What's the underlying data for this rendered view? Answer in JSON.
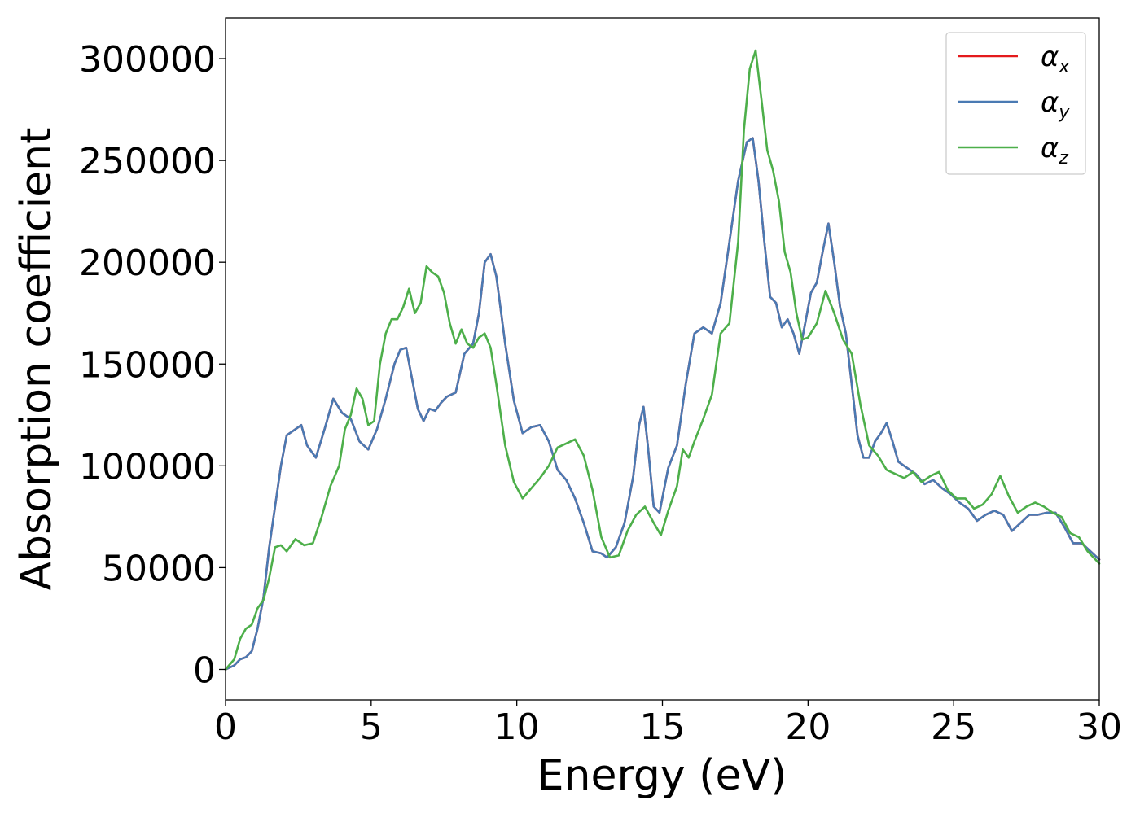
{
  "chart_data": {
    "type": "line",
    "xlabel": "Energy (eV)",
    "ylabel": "Absorption coefficient",
    "xlim": [
      0,
      30
    ],
    "ylim": [
      -15000,
      320000
    ],
    "xticks": [
      0,
      5,
      10,
      15,
      20,
      25,
      30
    ],
    "xtick_labels": [
      "0",
      "5",
      "10",
      "15",
      "20",
      "25",
      "30"
    ],
    "yticks": [
      0,
      50000,
      100000,
      150000,
      200000,
      250000,
      300000
    ],
    "ytick_labels": [
      "0",
      "50000",
      "100000",
      "150000",
      "200000",
      "250000",
      "300000"
    ],
    "grid": false,
    "legend_position": "top-right",
    "series": [
      {
        "name": "α_x",
        "label_main": "α",
        "label_sub": "x",
        "color": "#e41a1c",
        "x": [
          0,
          0.3,
          0.5,
          0.7,
          0.9,
          1.1,
          1.3,
          1.5,
          1.7,
          1.9,
          2.1,
          2.3,
          2.6,
          2.8,
          3.1,
          3.4,
          3.7,
          4.0,
          4.3,
          4.6,
          4.9,
          5.2,
          5.5,
          5.8,
          6.0,
          6.2,
          6.4,
          6.6,
          6.8,
          7.0,
          7.2,
          7.4,
          7.6,
          7.9,
          8.2,
          8.5,
          8.7,
          8.9,
          9.1,
          9.3,
          9.6,
          9.9,
          10.2,
          10.5,
          10.8,
          11.1,
          11.4,
          11.7,
          12.0,
          12.3,
          12.6,
          12.9,
          13.1,
          13.4,
          13.7,
          14.0,
          14.2,
          14.35,
          14.5,
          14.7,
          14.9,
          15.2,
          15.5,
          15.8,
          16.1,
          16.4,
          16.7,
          17.0,
          17.3,
          17.6,
          17.9,
          18.1,
          18.3,
          18.5,
          18.7,
          18.9,
          19.1,
          19.3,
          19.5,
          19.7,
          19.9,
          20.1,
          20.3,
          20.5,
          20.7,
          20.9,
          21.1,
          21.3,
          21.5,
          21.7,
          21.9,
          22.1,
          22.3,
          22.5,
          22.7,
          22.9,
          23.1,
          23.4,
          23.7,
          24.0,
          24.3,
          24.6,
          24.9,
          25.2,
          25.5,
          25.8,
          26.1,
          26.4,
          26.7,
          27.0,
          27.3,
          27.6,
          27.9,
          28.2,
          28.5,
          28.8,
          29.1,
          29.4,
          29.7,
          30.0
        ],
        "values": [
          0,
          2000,
          5000,
          6000,
          9000,
          20000,
          35000,
          60000,
          80000,
          100000,
          115000,
          117000,
          120000,
          110000,
          104000,
          118000,
          133000,
          126000,
          123000,
          112000,
          108000,
          118000,
          133000,
          150000,
          157000,
          158000,
          143000,
          128000,
          122000,
          128000,
          127000,
          131000,
          134000,
          136000,
          155000,
          160000,
          175000,
          200000,
          204000,
          193000,
          160000,
          132000,
          116000,
          119000,
          120000,
          112000,
          98000,
          93000,
          84000,
          72000,
          58000,
          57000,
          55000,
          60000,
          72000,
          95000,
          120000,
          129000,
          110000,
          80000,
          77000,
          99000,
          110000,
          140000,
          165000,
          168000,
          165000,
          180000,
          210000,
          240000,
          259000,
          261000,
          240000,
          210000,
          183000,
          180000,
          168000,
          172000,
          165000,
          155000,
          170000,
          185000,
          190000,
          205000,
          219000,
          200000,
          178000,
          165000,
          140000,
          115000,
          104000,
          104000,
          112000,
          116000,
          121000,
          112000,
          102000,
          99000,
          96000,
          91000,
          93000,
          89000,
          86000,
          82000,
          79000,
          73000,
          76000,
          78000,
          76000,
          68000,
          72000,
          76000,
          76000,
          77000,
          77000,
          70000,
          62000,
          62000,
          58000,
          54000
        ]
      },
      {
        "name": "α_y",
        "label_main": "α",
        "label_sub": "y",
        "color": "#4a7ab3",
        "x": [
          0,
          0.3,
          0.5,
          0.7,
          0.9,
          1.1,
          1.3,
          1.5,
          1.7,
          1.9,
          2.1,
          2.3,
          2.6,
          2.8,
          3.1,
          3.4,
          3.7,
          4.0,
          4.3,
          4.6,
          4.9,
          5.2,
          5.5,
          5.8,
          6.0,
          6.2,
          6.4,
          6.6,
          6.8,
          7.0,
          7.2,
          7.4,
          7.6,
          7.9,
          8.2,
          8.5,
          8.7,
          8.9,
          9.1,
          9.3,
          9.6,
          9.9,
          10.2,
          10.5,
          10.8,
          11.1,
          11.4,
          11.7,
          12.0,
          12.3,
          12.6,
          12.9,
          13.1,
          13.4,
          13.7,
          14.0,
          14.2,
          14.35,
          14.5,
          14.7,
          14.9,
          15.2,
          15.5,
          15.8,
          16.1,
          16.4,
          16.7,
          17.0,
          17.3,
          17.6,
          17.9,
          18.1,
          18.3,
          18.5,
          18.7,
          18.9,
          19.1,
          19.3,
          19.5,
          19.7,
          19.9,
          20.1,
          20.3,
          20.5,
          20.7,
          20.9,
          21.1,
          21.3,
          21.5,
          21.7,
          21.9,
          22.1,
          22.3,
          22.5,
          22.7,
          22.9,
          23.1,
          23.4,
          23.7,
          24.0,
          24.3,
          24.6,
          24.9,
          25.2,
          25.5,
          25.8,
          26.1,
          26.4,
          26.7,
          27.0,
          27.3,
          27.6,
          27.9,
          28.2,
          28.5,
          28.8,
          29.1,
          29.4,
          29.7,
          30.0
        ],
        "values": [
          0,
          2000,
          5000,
          6000,
          9000,
          20000,
          35000,
          60000,
          80000,
          100000,
          115000,
          117000,
          120000,
          110000,
          104000,
          118000,
          133000,
          126000,
          123000,
          112000,
          108000,
          118000,
          133000,
          150000,
          157000,
          158000,
          143000,
          128000,
          122000,
          128000,
          127000,
          131000,
          134000,
          136000,
          155000,
          160000,
          175000,
          200000,
          204000,
          193000,
          160000,
          132000,
          116000,
          119000,
          120000,
          112000,
          98000,
          93000,
          84000,
          72000,
          58000,
          57000,
          55000,
          60000,
          72000,
          95000,
          120000,
          129000,
          110000,
          80000,
          77000,
          99000,
          110000,
          140000,
          165000,
          168000,
          165000,
          180000,
          210000,
          240000,
          259000,
          261000,
          240000,
          210000,
          183000,
          180000,
          168000,
          172000,
          165000,
          155000,
          170000,
          185000,
          190000,
          205000,
          219000,
          200000,
          178000,
          165000,
          140000,
          115000,
          104000,
          104000,
          112000,
          116000,
          121000,
          112000,
          102000,
          99000,
          96000,
          91000,
          93000,
          89000,
          86000,
          82000,
          79000,
          73000,
          76000,
          78000,
          76000,
          68000,
          72000,
          76000,
          76000,
          77000,
          77000,
          70000,
          62000,
          62000,
          58000,
          54000
        ]
      },
      {
        "name": "α_z",
        "label_main": "α",
        "label_sub": "z",
        "color": "#4daf4a",
        "x": [
          0,
          0.3,
          0.5,
          0.7,
          0.9,
          1.1,
          1.3,
          1.5,
          1.7,
          1.9,
          2.1,
          2.4,
          2.7,
          3.0,
          3.3,
          3.6,
          3.9,
          4.1,
          4.3,
          4.5,
          4.7,
          4.9,
          5.1,
          5.3,
          5.5,
          5.7,
          5.9,
          6.1,
          6.3,
          6.5,
          6.7,
          6.9,
          7.1,
          7.3,
          7.5,
          7.7,
          7.9,
          8.1,
          8.3,
          8.5,
          8.7,
          8.9,
          9.1,
          9.3,
          9.6,
          9.9,
          10.2,
          10.5,
          10.8,
          11.1,
          11.4,
          11.7,
          12.0,
          12.3,
          12.6,
          12.9,
          13.2,
          13.5,
          13.8,
          14.1,
          14.4,
          14.7,
          14.95,
          15.2,
          15.5,
          15.7,
          15.9,
          16.1,
          16.4,
          16.7,
          17.0,
          17.3,
          17.6,
          17.8,
          18.0,
          18.2,
          18.4,
          18.6,
          18.8,
          19.0,
          19.2,
          19.4,
          19.6,
          19.8,
          20.0,
          20.3,
          20.6,
          20.9,
          21.2,
          21.5,
          21.8,
          22.1,
          22.4,
          22.7,
          23.0,
          23.3,
          23.6,
          23.9,
          24.2,
          24.5,
          24.8,
          25.1,
          25.4,
          25.7,
          26.0,
          26.3,
          26.6,
          26.9,
          27.2,
          27.5,
          27.8,
          28.1,
          28.4,
          28.7,
          29.0,
          29.3,
          29.6,
          30.0
        ],
        "values": [
          0,
          5000,
          15000,
          20000,
          22000,
          30000,
          34000,
          45000,
          60000,
          61000,
          58000,
          64000,
          61000,
          62000,
          75000,
          90000,
          100000,
          118000,
          125000,
          138000,
          133000,
          120000,
          122000,
          150000,
          165000,
          172000,
          172000,
          178000,
          187000,
          175000,
          180000,
          198000,
          195000,
          193000,
          185000,
          170000,
          160000,
          167000,
          160000,
          158000,
          163000,
          165000,
          158000,
          140000,
          110000,
          92000,
          84000,
          89000,
          94000,
          100000,
          109000,
          111000,
          113000,
          105000,
          88000,
          65000,
          55000,
          56000,
          68000,
          76000,
          80000,
          72000,
          66000,
          78000,
          90000,
          108000,
          104000,
          112000,
          123000,
          135000,
          165000,
          170000,
          210000,
          265000,
          295000,
          304000,
          280000,
          255000,
          245000,
          230000,
          205000,
          195000,
          175000,
          162000,
          163000,
          170000,
          186000,
          175000,
          162000,
          155000,
          130000,
          110000,
          105000,
          98000,
          96000,
          94000,
          97000,
          92000,
          95000,
          97000,
          88000,
          84000,
          84000,
          79000,
          81000,
          86000,
          95000,
          85000,
          77000,
          80000,
          82000,
          80000,
          77000,
          75000,
          67000,
          65000,
          58000,
          52000
        ]
      }
    ]
  }
}
